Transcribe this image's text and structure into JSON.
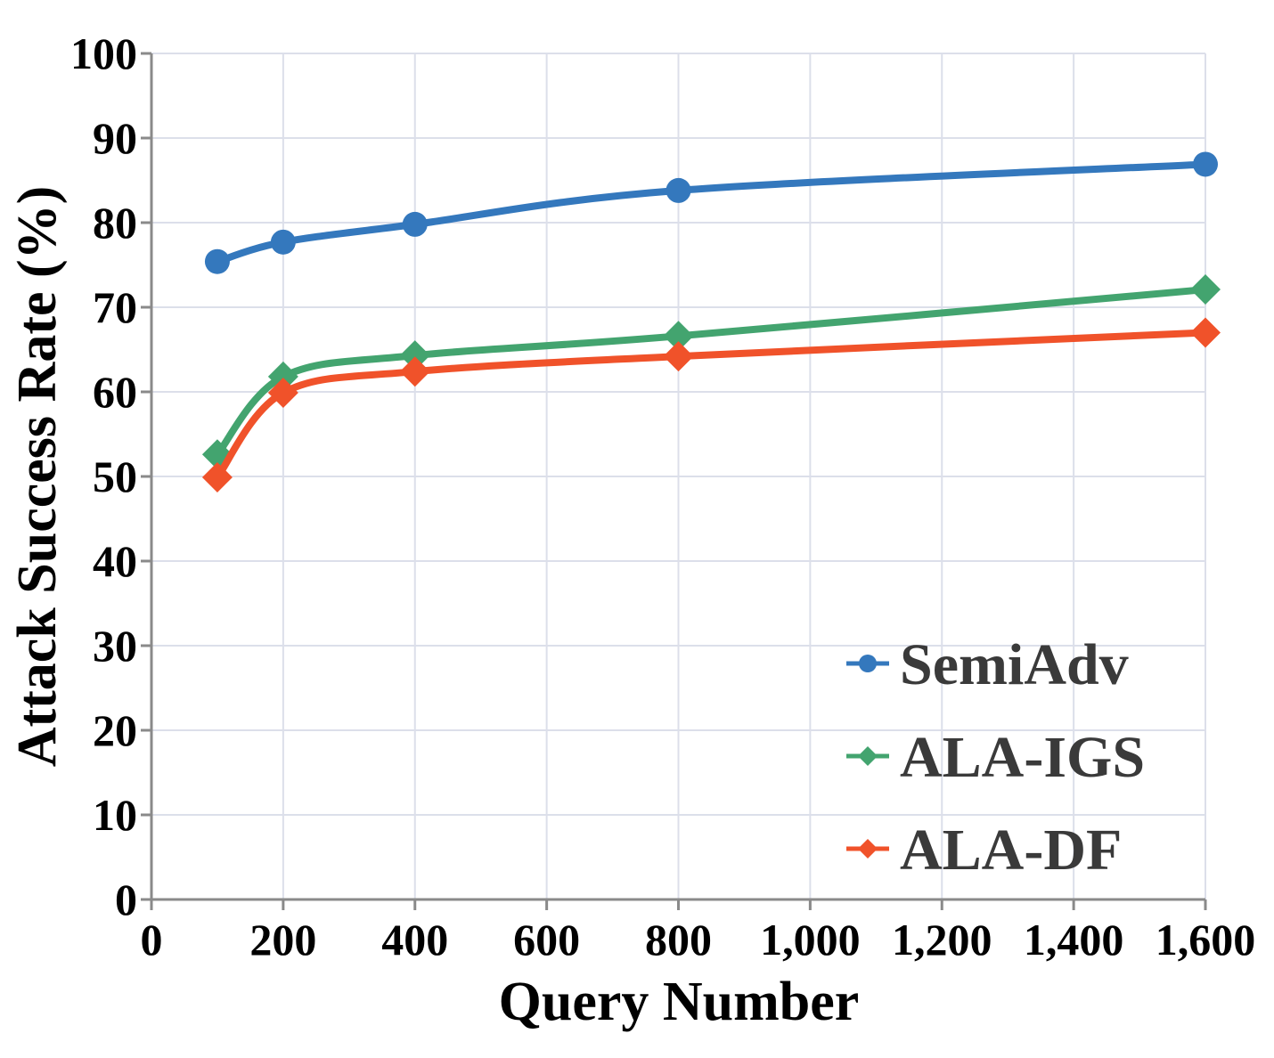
{
  "chart_data": {
    "type": "line",
    "xlabel": "Query Number",
    "ylabel": "Attack Success Rate (%)",
    "xlim": [
      0,
      1600
    ],
    "ylim": [
      0,
      100
    ],
    "x_ticks": [
      0,
      200,
      400,
      600,
      800,
      1000,
      1200,
      1400,
      1600
    ],
    "x_tick_labels": [
      "0",
      "200",
      "400",
      "600",
      "800",
      "1,000",
      "1,200",
      "1,400",
      "1,600"
    ],
    "y_ticks": [
      0,
      10,
      20,
      30,
      40,
      50,
      60,
      70,
      80,
      90,
      100
    ],
    "y_tick_labels": [
      "0",
      "10",
      "20",
      "30",
      "40",
      "50",
      "60",
      "70",
      "80",
      "90",
      "100"
    ],
    "grid": true,
    "legend_position": "bottom-right",
    "smooth": true,
    "series": [
      {
        "name": "SemiAdv",
        "color": "#3478bd",
        "marker": "circle",
        "x": [
          100,
          200,
          400,
          800,
          1600
        ],
        "y": [
          75.4,
          77.7,
          79.8,
          83.8,
          86.9
        ]
      },
      {
        "name": "ALA-IGS",
        "color": "#43a46f",
        "marker": "diamond",
        "x": [
          100,
          200,
          400,
          800,
          1600
        ],
        "y": [
          52.6,
          61.8,
          64.3,
          66.6,
          72.1
        ]
      },
      {
        "name": "ALA-DF",
        "color": "#f0522a",
        "marker": "diamond",
        "x": [
          100,
          200,
          400,
          800,
          1600
        ],
        "y": [
          49.9,
          59.9,
          62.4,
          64.2,
          67.0
        ]
      }
    ]
  }
}
